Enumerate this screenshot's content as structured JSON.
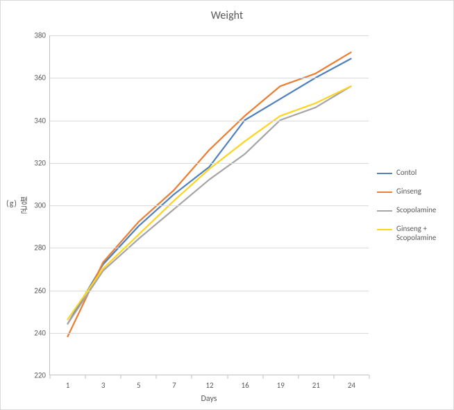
{
  "chart": {
    "type": "line",
    "title": "Weight",
    "title_fontsize": 16,
    "xlabel": "Days",
    "ylabel_main": "평균",
    "ylabel_unit": "(g)",
    "label_fontsize": 12,
    "tick_fontsize": 11,
    "background_color": "#ffffff",
    "border_color": "#d9d9d9",
    "axis_color": "#bfbfbf",
    "grid_color": "#d9d9d9",
    "text_color": "#595959",
    "x_categories": [
      "1",
      "3",
      "5",
      "7",
      "12",
      "16",
      "19",
      "21",
      "24"
    ],
    "ylim": [
      220,
      380
    ],
    "ytick_step": 20,
    "line_width": 2.25,
    "series": [
      {
        "name": "Contol",
        "color": "#4f81bd",
        "values": [
          244,
          272,
          290,
          305,
          318,
          340,
          350,
          360,
          369
        ]
      },
      {
        "name": "Ginseng",
        "color": "#ed7d31",
        "values": [
          238,
          273,
          292,
          307,
          326,
          342,
          356,
          362,
          372
        ]
      },
      {
        "name": "Scopolamine",
        "color": "#a5a5a5",
        "values": [
          244,
          269,
          284,
          298,
          312,
          324,
          340,
          346,
          356
        ]
      },
      {
        "name": "Ginseng + Scopolamine",
        "color": "#ffd320",
        "values": [
          246,
          270,
          286,
          302,
          317,
          330,
          342,
          348,
          356
        ]
      }
    ]
  }
}
